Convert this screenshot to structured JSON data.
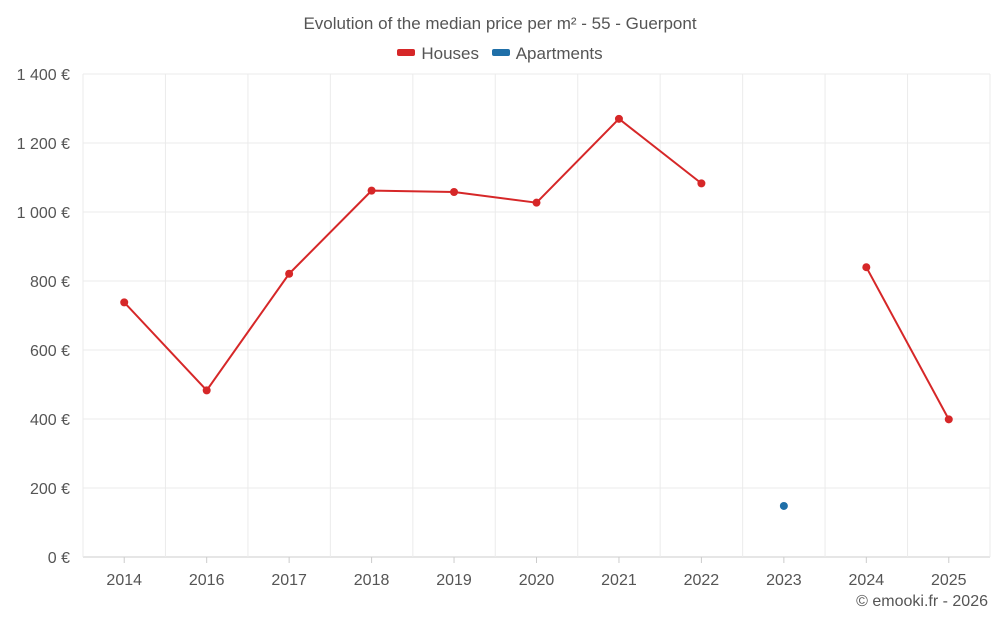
{
  "title": "Evolution of the median price per m² - 55 - Guerpont",
  "legend": [
    {
      "name": "Houses",
      "color": "#d62728"
    },
    {
      "name": "Apartments",
      "color": "#1f6fa8"
    }
  ],
  "credit": "© emooki.fr - 2026",
  "chart_data": {
    "type": "line",
    "title": "Evolution of the median price per m² - 55 - Guerpont",
    "xlabel": "",
    "ylabel": "",
    "categories": [
      "2014",
      "2016",
      "2017",
      "2018",
      "2019",
      "2020",
      "2021",
      "2022",
      "2023",
      "2024",
      "2025"
    ],
    "y_ticks": [
      "0 €",
      "200 €",
      "400 €",
      "600 €",
      "800 €",
      "1 000 €",
      "1 200 €",
      "1 400 €"
    ],
    "ylim": [
      0,
      1400
    ],
    "grid": true,
    "legend_position": "top-center",
    "series": [
      {
        "name": "Houses",
        "color": "#d62728",
        "values": [
          738,
          483,
          821,
          1062,
          1058,
          1027,
          1270,
          1083,
          null,
          840,
          399
        ]
      },
      {
        "name": "Apartments",
        "color": "#1f6fa8",
        "values": [
          null,
          null,
          null,
          null,
          null,
          null,
          null,
          null,
          148,
          null,
          null
        ]
      }
    ]
  }
}
